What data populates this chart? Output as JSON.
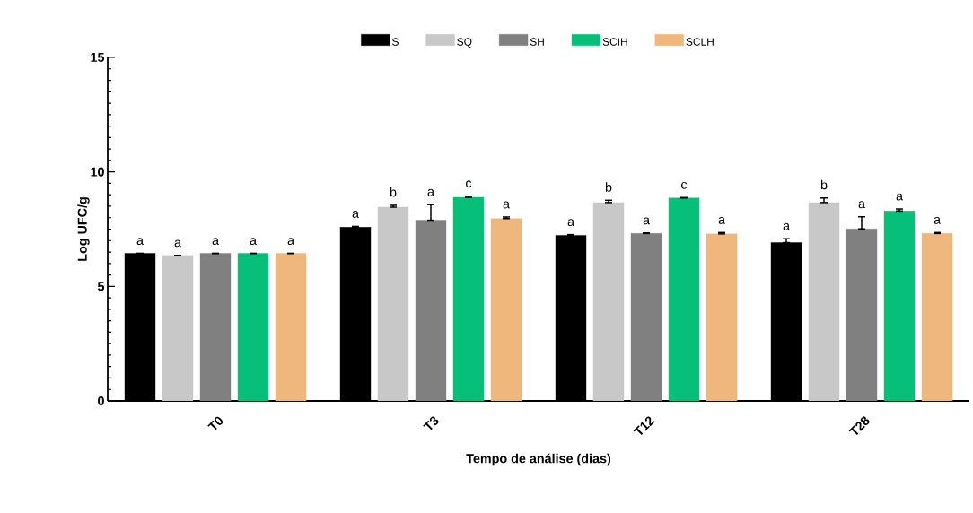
{
  "chart_data": {
    "type": "bar",
    "xlabel": "Tempo de análise (dias)",
    "ylabel": "Log UFC/g",
    "categories": [
      "T0",
      "T3",
      "T12",
      "T28"
    ],
    "series": [
      {
        "name": "S",
        "color": "#000000",
        "values": [
          6.44,
          7.59,
          7.23,
          6.91
        ],
        "errors": [
          null,
          [
            7.59,
            7.62
          ],
          [
            7.23,
            7.26
          ],
          [
            6.91,
            7.08
          ]
        ],
        "value_labels": [
          "a",
          "a",
          "a",
          "a"
        ]
      },
      {
        "name": "SQ",
        "color": "#c8c8c8",
        "values": [
          6.35,
          8.46,
          8.66,
          8.66
        ],
        "errors": [
          null,
          [
            8.46,
            8.54
          ],
          [
            8.66,
            8.76
          ],
          [
            8.66,
            8.86
          ]
        ],
        "value_labels": [
          "a",
          "b",
          "b",
          "b"
        ]
      },
      {
        "name": "SH",
        "color": "#808080",
        "values": [
          6.44,
          7.89,
          7.31,
          7.51
        ],
        "errors": [
          null,
          [
            7.89,
            8.57
          ],
          [
            7.31,
            7.33
          ],
          [
            7.51,
            8.04
          ]
        ],
        "value_labels": [
          "a",
          "a",
          "a",
          "a"
        ]
      },
      {
        "name": "SCIH",
        "color": "#06bf78",
        "values": [
          6.44,
          8.89,
          8.86,
          8.29
        ],
        "errors": [
          null,
          [
            8.89,
            8.94
          ],
          [
            8.86,
            8.88
          ],
          [
            8.29,
            8.38
          ]
        ],
        "value_labels": [
          "a",
          "c",
          "c",
          "a"
        ]
      },
      {
        "name": "SCLH",
        "color": "#f0b77c",
        "values": [
          6.44,
          7.96,
          7.29,
          7.31
        ],
        "errors": [
          null,
          [
            7.96,
            8.03
          ],
          [
            7.29,
            7.35
          ],
          [
            7.31,
            7.35
          ]
        ],
        "value_labels": [
          "a",
          "a",
          "a",
          "a"
        ]
      }
    ],
    "ylim": [
      0,
      15
    ],
    "yticks": [
      0,
      5,
      10,
      15
    ],
    "grid": false,
    "legend": "top"
  }
}
